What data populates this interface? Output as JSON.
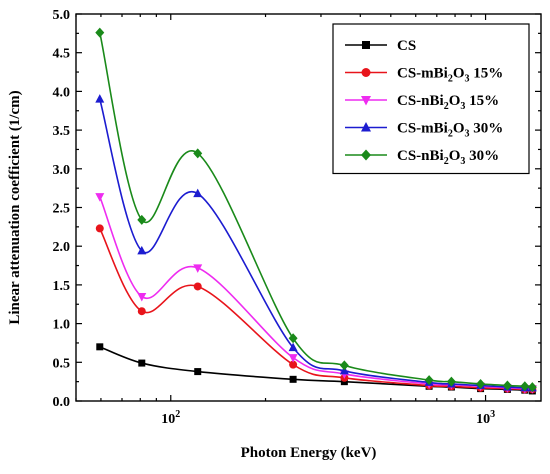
{
  "chart_data": {
    "type": "line",
    "xscale": "log",
    "xlabel": "Photon Energy (keV)",
    "ylabel": "Linear attenuation coefficient (1/cm)",
    "xlim": [
      50,
      1500
    ],
    "ylim": [
      0,
      5.0
    ],
    "yticks": [
      "0.0",
      "0.5",
      "1.0",
      "1.5",
      "2.0",
      "2.5",
      "3.0",
      "3.5",
      "4.0",
      "4.5",
      "5.0"
    ],
    "xtick_labels": [
      {
        "value": 100,
        "base": "10",
        "exp": "2"
      },
      {
        "value": 1000,
        "base": "10",
        "exp": "3"
      }
    ],
    "legend_position": "top-right",
    "x": [
      59.5,
      80.9,
      121.8,
      244.7,
      356,
      661.7,
      778.9,
      964.1,
      1173.2,
      1332.5,
      1408
    ],
    "series": [
      {
        "name": "CS",
        "name_parts": [
          {
            "t": "CS"
          }
        ],
        "color": "#000000",
        "marker": "square",
        "values": [
          0.7,
          0.49,
          0.38,
          0.28,
          0.25,
          0.19,
          0.18,
          0.16,
          0.15,
          0.14,
          0.13
        ]
      },
      {
        "name": "CS-mBi2O3 15%",
        "name_parts": [
          {
            "t": "CS-mBi"
          },
          {
            "t": "2",
            "sub": true
          },
          {
            "t": "O"
          },
          {
            "t": "3",
            "sub": true
          },
          {
            "t": " 15%"
          }
        ],
        "color": "#e8141b",
        "marker": "circle",
        "values": [
          2.23,
          1.16,
          1.48,
          0.47,
          0.3,
          0.2,
          0.19,
          0.17,
          0.16,
          0.15,
          0.15
        ]
      },
      {
        "name": "CS-nBi2O3 15%",
        "name_parts": [
          {
            "t": "CS-nBi"
          },
          {
            "t": "2",
            "sub": true
          },
          {
            "t": "O"
          },
          {
            "t": "3",
            "sub": true
          },
          {
            "t": " 15%"
          }
        ],
        "color": "#ee2cf0",
        "marker": "triangle-down",
        "values": [
          2.64,
          1.35,
          1.72,
          0.56,
          0.35,
          0.22,
          0.21,
          0.19,
          0.17,
          0.16,
          0.16
        ]
      },
      {
        "name": "CS-mBi2O3 30%",
        "name_parts": [
          {
            "t": "CS-mBi"
          },
          {
            "t": "2",
            "sub": true
          },
          {
            "t": "O"
          },
          {
            "t": "3",
            "sub": true
          },
          {
            "t": " 30%"
          }
        ],
        "color": "#1c1cd0",
        "marker": "triangle-up",
        "values": [
          3.9,
          1.94,
          2.68,
          0.69,
          0.39,
          0.24,
          0.22,
          0.2,
          0.18,
          0.17,
          0.17
        ]
      },
      {
        "name": "CS-nBi2O3 30%",
        "name_parts": [
          {
            "t": "CS-nBi"
          },
          {
            "t": "2",
            "sub": true
          },
          {
            "t": "O"
          },
          {
            "t": "3",
            "sub": true
          },
          {
            "t": " 30%"
          }
        ],
        "color": "#1a8a1a",
        "marker": "diamond",
        "values": [
          4.76,
          2.34,
          3.2,
          0.81,
          0.46,
          0.27,
          0.25,
          0.22,
          0.2,
          0.19,
          0.18
        ]
      }
    ]
  }
}
